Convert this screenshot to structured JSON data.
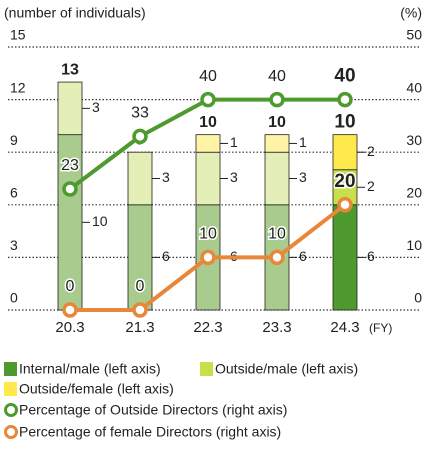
{
  "chart_data": {
    "type": "bar",
    "y_label": "(number of individuals)",
    "y2_label": "(%)",
    "x_unit": "(FY)",
    "categories": [
      "20.3",
      "21.3",
      "22.3",
      "23.3",
      "24.3"
    ],
    "ylim": [
      0,
      15
    ],
    "yticks": [
      0,
      3,
      6,
      9,
      12,
      15
    ],
    "y2lim": [
      0,
      50
    ],
    "y2ticks": [
      0,
      10,
      20,
      30,
      40,
      50
    ],
    "grid": true,
    "stacked": true,
    "totals": [
      13,
      9,
      10,
      10,
      10
    ],
    "series": [
      {
        "name": "Internal/male (left axis)",
        "color": "#4e9a2e",
        "point_colors": [
          "#a9cc8e",
          "#a9cc8e",
          "#a9cc8e",
          "#a9cc8e",
          "#4e9a2e"
        ],
        "values": [
          10,
          6,
          6,
          6,
          6
        ]
      },
      {
        "name": "Outside/male (left axis)",
        "color": "#c7df4b",
        "point_colors": [
          "#e3efb6",
          "#e3efb6",
          "#e3efb6",
          "#e3efb6",
          "#c7df4b"
        ],
        "values": [
          3,
          3,
          3,
          3,
          2
        ]
      },
      {
        "name": "Outside/female (left axis)",
        "color": "#ffe94c",
        "point_colors": [
          "#fff3a6",
          "#fff3a6",
          "#fff3a6",
          "#fff3a6",
          "#ffe94c"
        ],
        "values": [
          0,
          0,
          1,
          1,
          2
        ]
      },
      {
        "name": "Percentage of Outside Directors (right axis)",
        "type": "line",
        "axis": "y2",
        "color": "#4e9a2e",
        "values": [
          23,
          33,
          40,
          40,
          40
        ]
      },
      {
        "name": "Percentage of female Directors (right axis)",
        "type": "line",
        "axis": "y2",
        "color": "#e8873a",
        "values": [
          0,
          0,
          10,
          10,
          20
        ]
      }
    ]
  }
}
